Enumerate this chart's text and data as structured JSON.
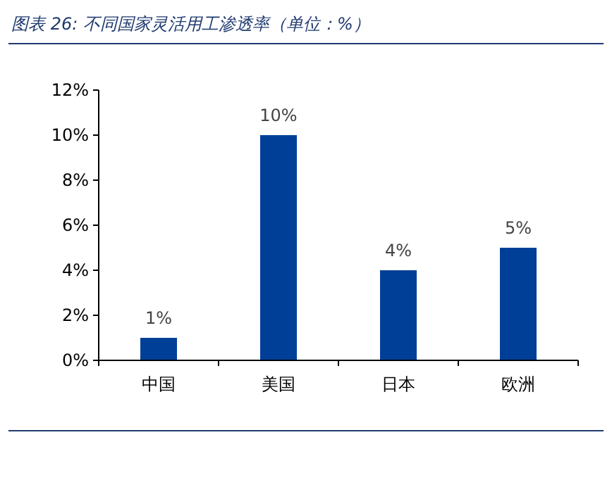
{
  "chart_data": {
    "type": "bar",
    "title": "图表 26:  不同国家灵活用工渗透率（单位：%）",
    "categories": [
      "中国",
      "美国",
      "日本",
      "欧洲"
    ],
    "values": [
      1,
      10,
      4,
      5
    ],
    "value_labels": [
      "1%",
      "10%",
      "4%",
      "5%"
    ],
    "color": "#003f98",
    "ylim": [
      0,
      12
    ],
    "yticks": [
      {
        "value": 0,
        "label": "0%"
      },
      {
        "value": 2,
        "label": "2%"
      },
      {
        "value": 4,
        "label": "4%"
      },
      {
        "value": 6,
        "label": "6%"
      },
      {
        "value": 8,
        "label": "8%"
      },
      {
        "value": 10,
        "label": "10%"
      },
      {
        "value": 12,
        "label": "12%"
      }
    ],
    "grid": false
  }
}
